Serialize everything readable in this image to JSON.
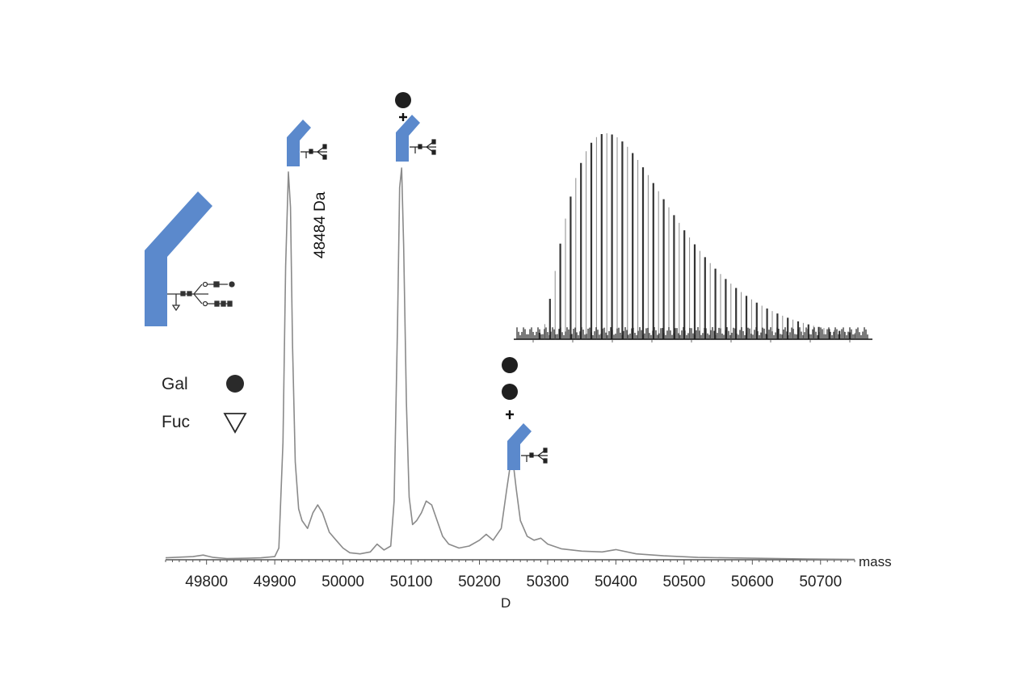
{
  "chart_data": {
    "type": "line",
    "title": "",
    "xlabel": "mass",
    "xlabel_second_line": "D",
    "ylabel": "",
    "xlim": [
      49740,
      50750
    ],
    "ylim": [
      0,
      100
    ],
    "grid": false,
    "xticks": [
      49800,
      49900,
      50000,
      50100,
      50200,
      50300,
      50400,
      50500,
      50600,
      50700
    ],
    "series": [
      {
        "x": [
          49740,
          49780,
          49795,
          49810,
          49830,
          49860,
          49880,
          49900,
          49906,
          49912,
          49916,
          49920,
          49923,
          49926,
          49930,
          49935,
          49940,
          49948,
          49956,
          49963,
          49970,
          49980,
          49990,
          50000,
          50010,
          50025,
          50040,
          50050,
          50060,
          50070,
          50075,
          50080,
          50083,
          50086,
          50089,
          50093,
          50097,
          50102,
          50108,
          50115,
          50122,
          50130,
          50138,
          50146,
          50155,
          50170,
          50185,
          50200,
          50210,
          50220,
          50232,
          50240,
          50246,
          50250,
          50254,
          50260,
          50270,
          50280,
          50290,
          50300,
          50320,
          50350,
          50380,
          50400,
          50430,
          50470,
          50520,
          50600,
          50680,
          50750
        ],
        "y": [
          0.5,
          0.8,
          1.2,
          0.6,
          0.3,
          0.4,
          0.5,
          0.8,
          3,
          30,
          75,
          99,
          90,
          55,
          25,
          13,
          10,
          8,
          12,
          14,
          12,
          7,
          5,
          3,
          1.8,
          1.5,
          2.0,
          4.0,
          2.5,
          3.5,
          15,
          60,
          95,
          100,
          80,
          40,
          16,
          9,
          10,
          12,
          15,
          14,
          10,
          6,
          4,
          3,
          3.5,
          5,
          6.5,
          5,
          8,
          18,
          25,
          24,
          18,
          10,
          6,
          5,
          5.5,
          4,
          2.8,
          2.2,
          2.0,
          2.6,
          1.5,
          1.0,
          0.6,
          0.4,
          0.2,
          0.1
        ]
      }
    ],
    "annotations": [
      {
        "text": "48484 Da",
        "x": 49940,
        "y": 84
      }
    ],
    "legend": [
      {
        "label": "Gal",
        "symbol": "filled-circle"
      },
      {
        "label": "Fuc",
        "symbol": "open-triangle"
      }
    ],
    "colors": {
      "line": "#8a8a8a",
      "protein": "#5b89cc",
      "gal": "#222222"
    }
  }
}
